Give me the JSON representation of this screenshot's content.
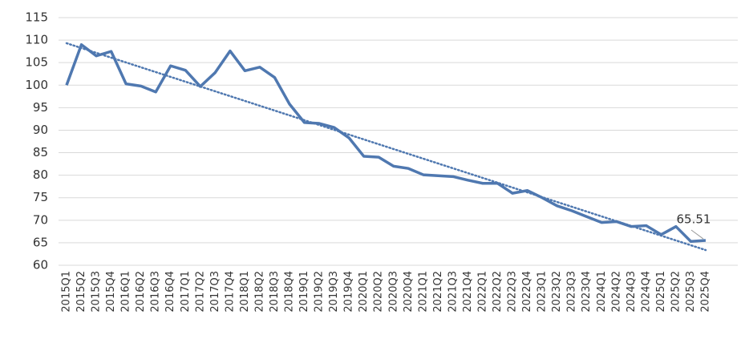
{
  "chart_data": {
    "type": "line",
    "categories": [
      "2015Q1",
      "2015Q2",
      "2015Q3",
      "2015Q4",
      "2016Q1",
      "2016Q2",
      "2016Q3",
      "2016Q4",
      "2017Q1",
      "2017Q2",
      "2017Q3",
      "2017Q4",
      "2018Q1",
      "2018Q2",
      "2018Q3",
      "2018Q4",
      "2019Q1",
      "2019Q2",
      "2019Q3",
      "2019Q4",
      "2020Q1",
      "2020Q2",
      "2020Q3",
      "2020Q4",
      "2021Q1",
      "2021Q2",
      "2021Q3",
      "2021Q4",
      "2022Q1",
      "2022Q2",
      "2022Q3",
      "2022Q4",
      "2023Q1",
      "2023Q2",
      "2023Q3",
      "2023Q4",
      "2024Q1",
      "2024Q2",
      "2024Q3",
      "2024Q4",
      "2025Q1",
      "2025Q2",
      "2025Q3",
      "2025Q4"
    ],
    "values": [
      100,
      109,
      106.5,
      107.5,
      100.3,
      99.8,
      98.5,
      104.3,
      103.3,
      99.7,
      102.8,
      107.6,
      103.2,
      104,
      101.7,
      95.8,
      91.7,
      91.5,
      90.6,
      88.3,
      84.2,
      84,
      82,
      81.5,
      80.1,
      79.9,
      79.7,
      78.9,
      78.2,
      78.2,
      76,
      76.6,
      75,
      73.2,
      72.1,
      70.8,
      69.5,
      69.7,
      68.6,
      68.8,
      66.8,
      68.6,
      65.3,
      65.51
    ],
    "color": "#4f78b0",
    "trendline": "linear",
    "ylim": [
      60,
      115
    ],
    "yticks": [
      60,
      65,
      70,
      75,
      80,
      85,
      90,
      95,
      100,
      105,
      110,
      115
    ],
    "grid": true
  }
}
